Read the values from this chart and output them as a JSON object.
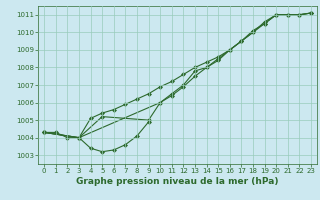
{
  "xlabel": "Graphe pression niveau de la mer (hPa)",
  "bg_color": "#cce8f0",
  "grid_color": "#99ccbb",
  "line_color": "#2d6a2d",
  "marker": "D",
  "markersize": 2.0,
  "linewidth": 0.8,
  "ylim": [
    1002.5,
    1011.5
  ],
  "yticks": [
    1003,
    1004,
    1005,
    1006,
    1007,
    1008,
    1009,
    1010,
    1011
  ],
  "xticks": [
    0,
    1,
    2,
    3,
    4,
    5,
    6,
    7,
    8,
    9,
    10,
    11,
    12,
    13,
    14,
    15,
    16,
    17,
    18,
    19,
    20,
    21,
    22,
    23
  ],
  "xlabel_fontsize": 6.5,
  "tick_fontsize": 5.0,
  "dip_x": [
    0,
    1,
    2,
    3,
    4,
    5,
    6,
    7,
    8,
    9
  ],
  "dip_y": [
    1004.3,
    1004.3,
    1004.0,
    1004.0,
    1003.4,
    1003.2,
    1003.3,
    1003.6,
    1004.1,
    1004.9
  ],
  "rise1_x": [
    0,
    3,
    4,
    5,
    6,
    7,
    8,
    9,
    10,
    11,
    12,
    13,
    14,
    15,
    16,
    17,
    18,
    19,
    20,
    21,
    22,
    23
  ],
  "rise1_y": [
    1004.3,
    1004.0,
    1005.1,
    1005.4,
    1005.6,
    1005.9,
    1006.2,
    1006.5,
    1006.9,
    1007.2,
    1007.6,
    1008.0,
    1008.3,
    1008.6,
    1009.0,
    1009.5,
    1010.0,
    1010.5,
    1011.0,
    1011.0,
    1011.0,
    1011.1
  ],
  "rise2_x": [
    0,
    3,
    5,
    9,
    10,
    11,
    12,
    13,
    14,
    15,
    16,
    17,
    18,
    19,
    20,
    21,
    22,
    23
  ],
  "rise2_y": [
    1004.3,
    1004.0,
    1005.2,
    1005.0,
    1006.0,
    1006.4,
    1006.9,
    1007.5,
    1008.0,
    1008.4,
    1009.0,
    1009.5,
    1010.1,
    1010.5,
    1011.0,
    1011.0,
    1011.0,
    1011.1
  ],
  "rise3_x": [
    0,
    3,
    10,
    11,
    12,
    13,
    14,
    15,
    16,
    17,
    18,
    19,
    20,
    21,
    22,
    23
  ],
  "rise3_y": [
    1004.3,
    1004.0,
    1006.0,
    1006.5,
    1007.0,
    1007.8,
    1008.0,
    1008.5,
    1009.0,
    1009.5,
    1010.0,
    1010.6,
    1011.0,
    1011.0,
    1011.0,
    1011.1
  ]
}
